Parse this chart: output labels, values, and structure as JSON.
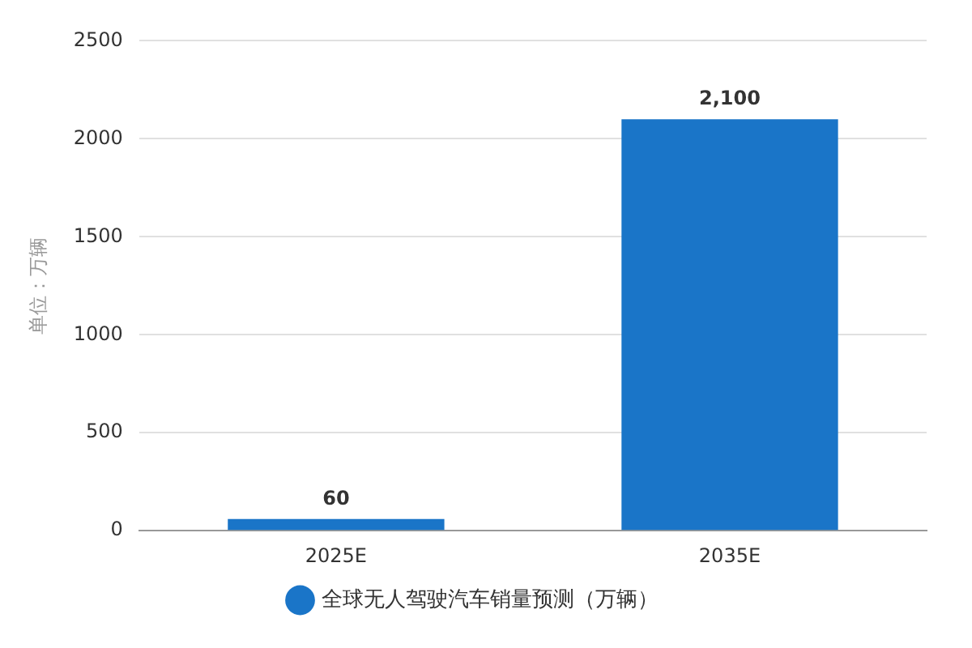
{
  "chart_data": {
    "type": "bar",
    "ylabel": "单位：万辆",
    "categories": [
      "2025E",
      "2035E"
    ],
    "series": [
      {
        "name": "全球无人驾驶汽车销量预测（万辆）",
        "color": "#1a75c8",
        "values": [
          60,
          2100
        ],
        "value_labels": [
          "60",
          "2,100"
        ]
      }
    ],
    "ylim": [
      0,
      2500
    ],
    "yticks": [
      0,
      500,
      1000,
      1500,
      2000,
      2500
    ],
    "grid": "y",
    "legend": "bottom"
  }
}
